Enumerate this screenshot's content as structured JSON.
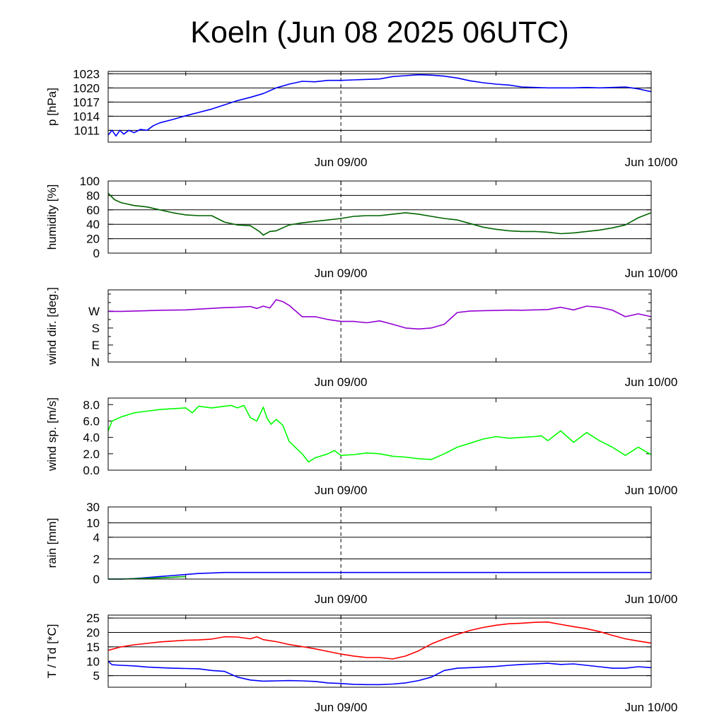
{
  "title": "Koeln (Jun 08 2025 06UTC)",
  "time_axis": {
    "range_hours": [
      0,
      42
    ],
    "labels": [
      {
        "text": "Jun 09/00",
        "hour": 18
      },
      {
        "text": "Jun 10/00",
        "hour": 42
      }
    ],
    "minor_ticks_hours": [
      6,
      18,
      30,
      42
    ],
    "marker_hour": 18
  },
  "chart_data": [
    {
      "id": "pressure",
      "type": "line",
      "ylabel": "p [hPa]",
      "ylim": [
        1008.5,
        1023.5
      ],
      "yticks": [
        {
          "label": "1023",
          "value": 1023
        },
        {
          "label": "1020",
          "value": 1020
        },
        {
          "label": "1017",
          "value": 1017
        },
        {
          "label": "1014",
          "value": 1014
        },
        {
          "label": "1011",
          "value": 1011
        }
      ],
      "grid": true,
      "series": [
        {
          "color": "#0000ff",
          "x": [
            0,
            0.3,
            0.6,
            0.9,
            1.2,
            1.6,
            2,
            2.5,
            3,
            3.5,
            4,
            5,
            6,
            7,
            8,
            9,
            10,
            11,
            12,
            13,
            14,
            15,
            16,
            17,
            18,
            19,
            20,
            21,
            22,
            23,
            24,
            25,
            26,
            27,
            28,
            29,
            30,
            31,
            32,
            33,
            34,
            35,
            36,
            37,
            38,
            39,
            40,
            41,
            42
          ],
          "y": [
            1010,
            1011,
            1009.8,
            1011,
            1010.2,
            1011,
            1010.5,
            1011.2,
            1011,
            1012,
            1012.6,
            1013.3,
            1014.1,
            1014.8,
            1015.5,
            1016.4,
            1017.3,
            1018,
            1018.8,
            1020,
            1020.8,
            1021.4,
            1021.3,
            1021.6,
            1021.6,
            1021.7,
            1021.8,
            1021.9,
            1022.4,
            1022.6,
            1022.8,
            1022.7,
            1022.5,
            1022.1,
            1021.5,
            1021.1,
            1020.8,
            1020.6,
            1020.2,
            1020.1,
            1020,
            1020,
            1020,
            1020.1,
            1020,
            1020.1,
            1020.2,
            1019.8,
            1019.2
          ]
        }
      ]
    },
    {
      "id": "humidity",
      "type": "line",
      "ylabel": "humidity [%]",
      "ylim": [
        0,
        100
      ],
      "yticks": [
        {
          "label": "100",
          "value": 100
        },
        {
          "label": "80",
          "value": 80
        },
        {
          "label": "60",
          "value": 60
        },
        {
          "label": "40",
          "value": 40
        },
        {
          "label": "20",
          "value": 20
        },
        {
          "label": "0",
          "value": 0
        }
      ],
      "grid": true,
      "series": [
        {
          "color": "#006400",
          "x": [
            0,
            0.5,
            1,
            2,
            3,
            4,
            5,
            6,
            7,
            8,
            9,
            10,
            11,
            11.7,
            12,
            12.5,
            13,
            14,
            15,
            16,
            17,
            18,
            19,
            20,
            21,
            22,
            23,
            24,
            25,
            26,
            27,
            28,
            29,
            30,
            31,
            32,
            33,
            34,
            35,
            36,
            37,
            38,
            39,
            40,
            41,
            42
          ],
          "y": [
            83,
            74,
            70,
            66,
            64,
            60,
            56,
            53,
            52,
            52,
            43,
            39,
            38,
            30,
            25,
            30,
            31,
            39,
            42,
            44,
            46,
            48,
            51,
            52,
            52,
            54,
            56,
            54,
            51,
            48,
            46,
            41,
            36,
            33,
            31,
            30,
            30,
            29,
            27,
            28,
            30,
            32,
            35,
            39,
            49,
            56
          ]
        }
      ]
    },
    {
      "id": "wind_direction",
      "type": "line",
      "ylabel": "wind dir. [deg.]",
      "ylim": [
        0,
        382
      ],
      "yticks": [
        {
          "label": "W",
          "value": 270
        },
        {
          "label": "S",
          "value": 180
        },
        {
          "label": "E",
          "value": 90
        },
        {
          "label": "N",
          "value": 0
        }
      ],
      "grid": false,
      "series": [
        {
          "color": "#9400d3",
          "x": [
            0,
            1,
            2,
            3,
            4,
            5,
            6,
            7,
            8,
            9,
            10,
            11,
            11.5,
            12,
            12.5,
            13,
            13.5,
            14,
            15,
            16,
            17,
            18,
            19,
            20,
            21,
            22,
            23,
            24,
            25,
            26,
            27,
            28,
            29,
            30,
            31,
            32,
            33,
            34,
            35,
            36,
            37,
            38,
            39,
            40,
            41,
            42
          ],
          "y": [
            268,
            268,
            270,
            272,
            274,
            275,
            276,
            280,
            284,
            288,
            290,
            294,
            284,
            296,
            286,
            330,
            320,
            300,
            240,
            240,
            225,
            215,
            215,
            208,
            218,
            200,
            180,
            175,
            180,
            200,
            262,
            270,
            272,
            273,
            275,
            274,
            276,
            278,
            290,
            276,
            296,
            290,
            275,
            240,
            255,
            240
          ]
        }
      ]
    },
    {
      "id": "wind_speed",
      "type": "line",
      "ylabel": "wind sp. [m/s]",
      "ylim": [
        0,
        8.8
      ],
      "yticks": [
        {
          "label": "8.0",
          "value": 8
        },
        {
          "label": "6.0",
          "value": 6
        },
        {
          "label": "4.0",
          "value": 4
        },
        {
          "label": "2.0",
          "value": 2
        },
        {
          "label": "0.0",
          "value": 0
        }
      ],
      "grid": false,
      "series": [
        {
          "color": "#00ff00",
          "x": [
            0,
            0.3,
            1,
            2,
            3,
            4,
            5,
            6,
            6.5,
            7,
            8,
            9,
            9.5,
            10,
            10.5,
            11,
            11.5,
            12,
            12.3,
            12.6,
            13,
            13.5,
            14,
            15,
            15.5,
            16,
            17,
            17.5,
            18,
            19,
            20,
            21,
            22,
            23,
            24,
            25,
            26,
            27,
            28,
            29,
            30,
            31,
            32,
            33,
            33.5,
            34,
            35,
            36,
            37,
            38,
            39,
            40,
            41,
            42
          ],
          "y": [
            4.8,
            6,
            6.5,
            7,
            7.2,
            7.4,
            7.5,
            7.6,
            7,
            7.8,
            7.6,
            7.8,
            7.9,
            7.6,
            7.9,
            6.4,
            6,
            7.7,
            6.3,
            5.6,
            6.2,
            5.5,
            3.5,
            2,
            1,
            1.5,
            2,
            2.4,
            1.8,
            1.9,
            2.1,
            2,
            1.7,
            1.6,
            1.4,
            1.3,
            2,
            2.8,
            3.3,
            3.8,
            4.1,
            3.9,
            4,
            4.1,
            4.2,
            3.6,
            4.8,
            3.4,
            4.6,
            3.6,
            2.8,
            1.8,
            2.8,
            1.9
          ]
        }
      ]
    },
    {
      "id": "rain",
      "type": "line",
      "ylabel": "rain [mm]",
      "yscale": "nonlinear",
      "ylim": [
        0,
        30
      ],
      "yticks": [
        {
          "label": "30",
          "value": 30
        },
        {
          "label": "10",
          "value": 10
        },
        {
          "label": "4",
          "value": 4
        },
        {
          "label": "2",
          "value": 2
        },
        {
          "label": "0",
          "value": 0
        }
      ],
      "grid": true,
      "series": [
        {
          "color": "#0000ff",
          "x": [
            0,
            1,
            2,
            3,
            4,
            5,
            6,
            7,
            8,
            9,
            10,
            11,
            12,
            18,
            24,
            30,
            36,
            42
          ],
          "y": [
            0,
            0,
            0.05,
            0.15,
            0.25,
            0.35,
            0.45,
            0.55,
            0.6,
            0.65,
            0.65,
            0.65,
            0.65,
            0.65,
            0.65,
            0.65,
            0.65,
            0.65
          ]
        },
        {
          "color": "#00aa00",
          "x": [
            0,
            1,
            2,
            3,
            4,
            5,
            6
          ],
          "y": [
            0,
            0,
            0.03,
            0.08,
            0.12,
            0.18,
            0.25
          ]
        }
      ]
    },
    {
      "id": "temperature",
      "type": "line",
      "ylabel": "T / Td [*C]",
      "ylim": [
        1,
        26
      ],
      "yticks": [
        {
          "label": "25",
          "value": 25
        },
        {
          "label": "20",
          "value": 20
        },
        {
          "label": "15",
          "value": 15
        },
        {
          "label": "10",
          "value": 10
        },
        {
          "label": "5",
          "value": 5
        }
      ],
      "grid": true,
      "series": [
        {
          "color": "#ff0000",
          "x": [
            0,
            1,
            2,
            3,
            4,
            5,
            6,
            7,
            8,
            9,
            10,
            11,
            11.5,
            12,
            13,
            14,
            15,
            16,
            17,
            18,
            19,
            20,
            21,
            22,
            23,
            24,
            25,
            26,
            27,
            28,
            29,
            30,
            31,
            32,
            33,
            34,
            35,
            36,
            37,
            38,
            39,
            40,
            41,
            42
          ],
          "y": [
            13.8,
            15,
            15.7,
            16.2,
            16.7,
            17,
            17.3,
            17.4,
            17.7,
            18.5,
            18.4,
            17.8,
            18.5,
            17.5,
            16.8,
            15.8,
            15.1,
            14.3,
            13.4,
            12.5,
            11.8,
            11.3,
            11.3,
            10.8,
            11.8,
            13.6,
            16,
            17.8,
            19.3,
            20.7,
            21.7,
            22.5,
            23,
            23.2,
            23.5,
            23.6,
            22.8,
            22,
            21.3,
            20.3,
            19,
            17.8,
            17,
            16.3
          ]
        },
        {
          "color": "#0000ff",
          "x": [
            0,
            0.3,
            1,
            2,
            3,
            4,
            5,
            6,
            7,
            8,
            9,
            10,
            11,
            12,
            13,
            14,
            15,
            16,
            17,
            18,
            19,
            20,
            21,
            22,
            23,
            24,
            25,
            26,
            27,
            28,
            29,
            30,
            31,
            32,
            33,
            34,
            35,
            36,
            37,
            38,
            39,
            40,
            41,
            42
          ],
          "y": [
            10,
            8.8,
            8.6,
            8.4,
            8,
            7.8,
            7.6,
            7.5,
            7.4,
            6.8,
            6.5,
            4.5,
            3.5,
            3.1,
            3.2,
            3.3,
            3.2,
            3,
            2.5,
            2.3,
            2,
            1.9,
            1.9,
            2.1,
            2.5,
            3.3,
            4.5,
            6.8,
            7.6,
            7.8,
            8,
            8.2,
            8.6,
            8.9,
            9.1,
            9.3,
            8.9,
            9.1,
            8.6,
            8.1,
            7.6,
            7.6,
            8.1,
            7.8
          ]
        }
      ]
    }
  ]
}
